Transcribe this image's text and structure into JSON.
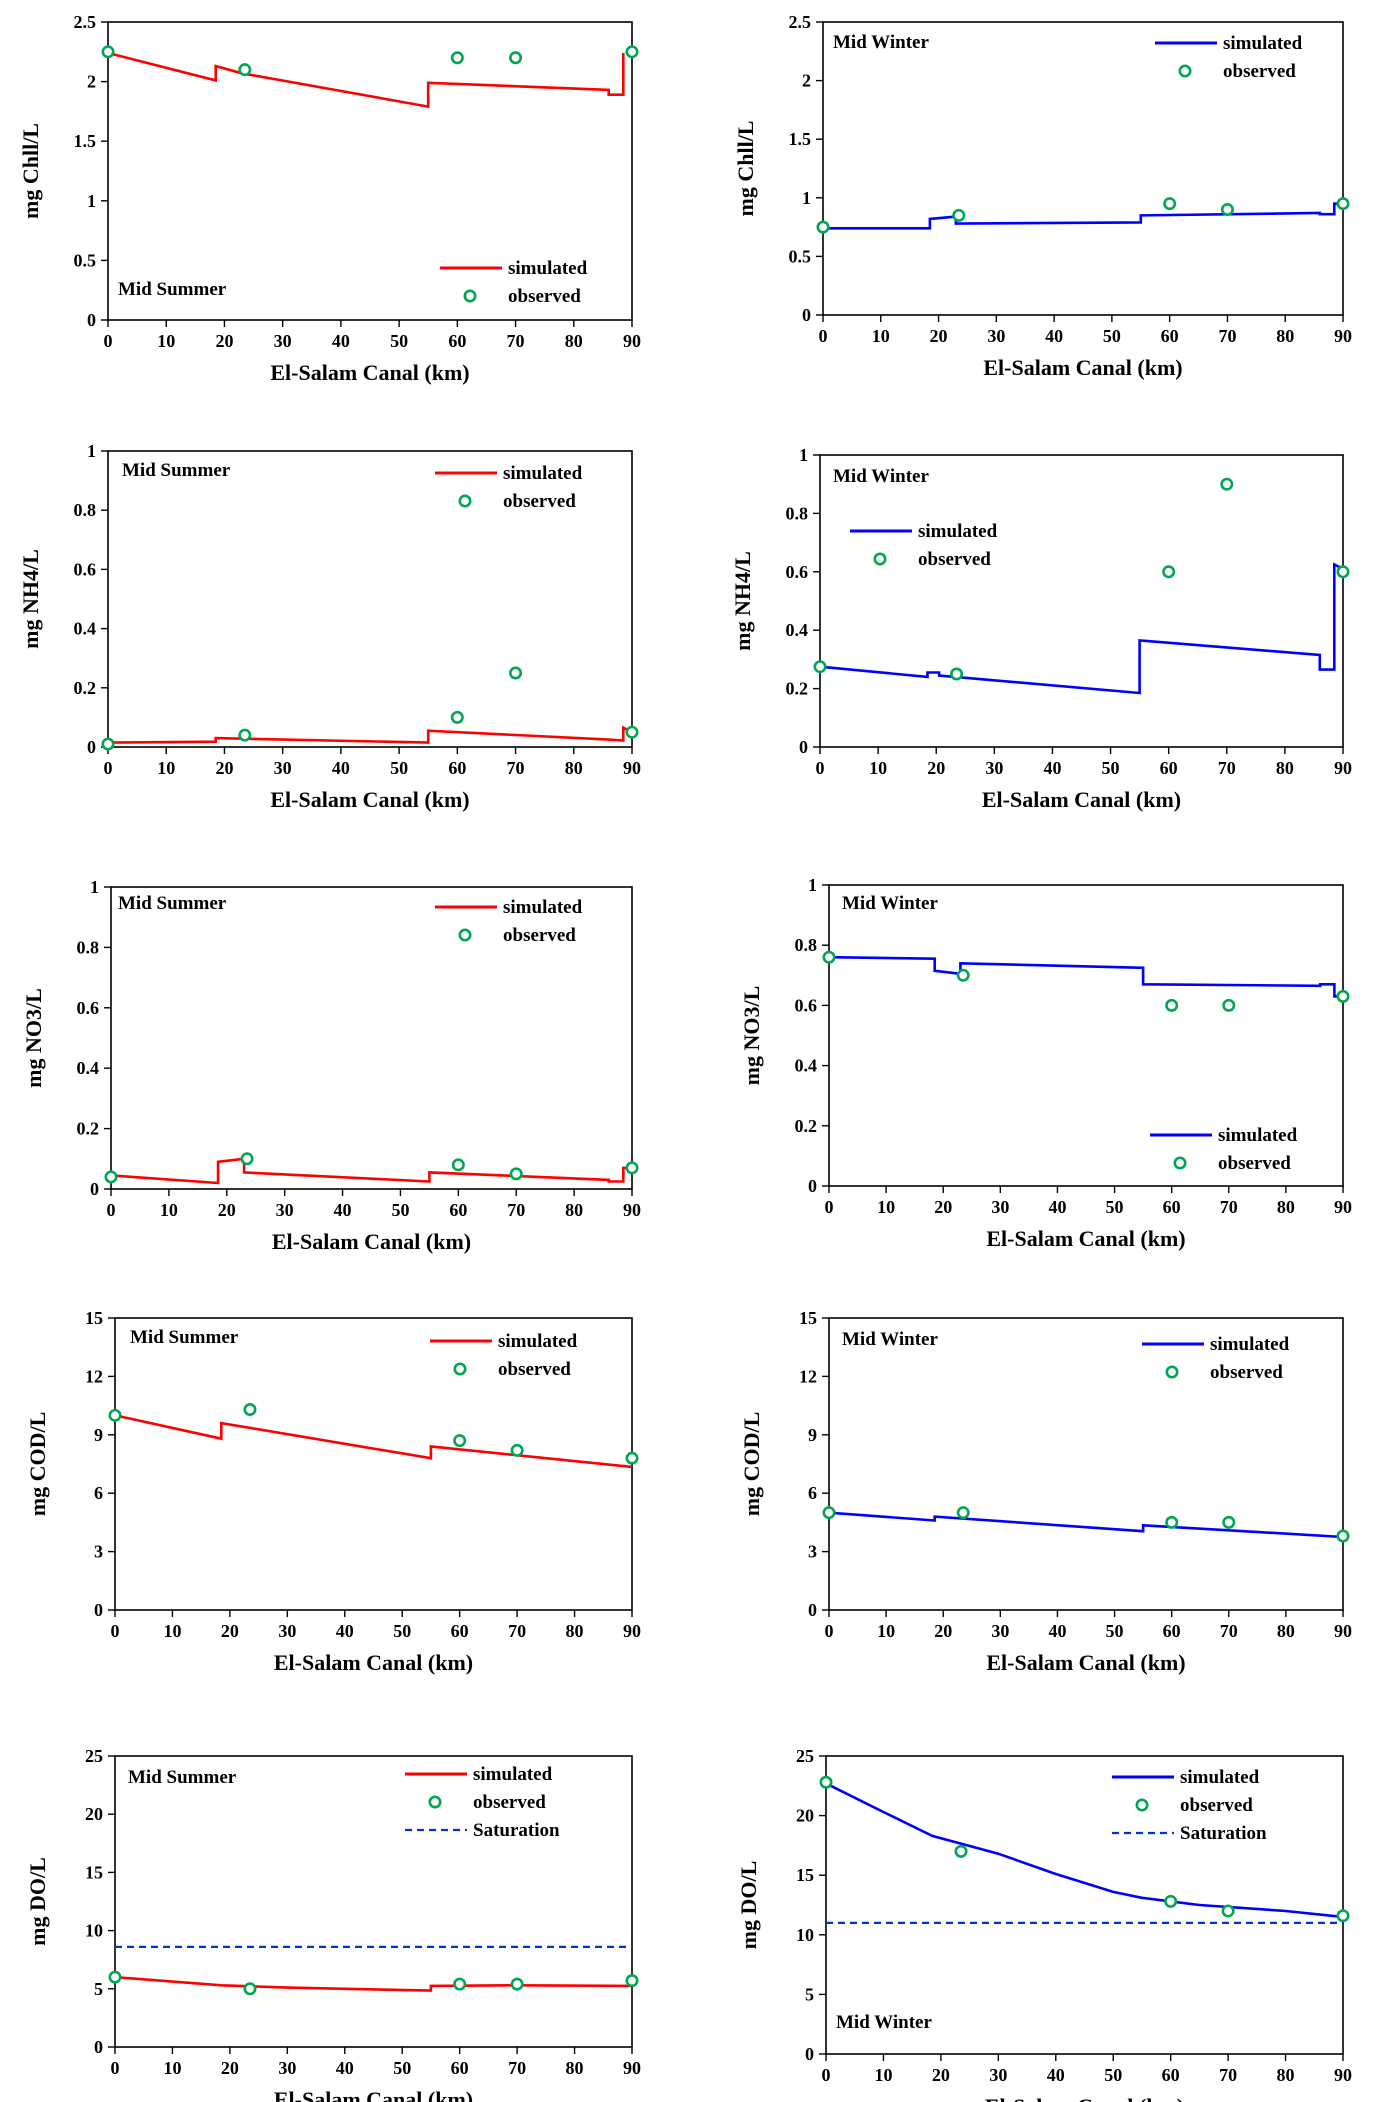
{
  "chart_data": [
    {
      "type": "line",
      "ylabel": "mg Chll/L",
      "xlabel": "El-Salam Canal (km)",
      "annotation": "Mid Summer",
      "xlim": [
        0,
        90
      ],
      "ylim": [
        0,
        2.5
      ],
      "xticks": [
        0,
        10,
        20,
        30,
        40,
        50,
        60,
        70,
        80,
        90
      ],
      "yticks": [
        0,
        0.5,
        1,
        1.5,
        2,
        2.5
      ],
      "legend_position": "bottom-right",
      "series": [
        {
          "name": "simulated",
          "kind": "line",
          "color": "#ff0000",
          "x": [
            0,
            18.5,
            18.5,
            23,
            55,
            55,
            86,
            86,
            88.5,
            88.5
          ],
          "y": [
            2.24,
            2.01,
            2.13,
            2.07,
            1.79,
            1.99,
            1.93,
            1.89,
            1.89,
            2.24
          ]
        },
        {
          "name": "observed",
          "kind": "scatter",
          "color": "#00a651",
          "x": [
            0,
            23.5,
            60,
            70,
            90
          ],
          "y": [
            2.25,
            2.1,
            2.2,
            2.2,
            2.25
          ]
        }
      ]
    },
    {
      "type": "line",
      "ylabel": "mg Chll/L",
      "xlabel": "El-Salam Canal (km)",
      "annotation": "Mid Winter",
      "xlim": [
        0,
        90
      ],
      "ylim": [
        0,
        2.5
      ],
      "xticks": [
        0,
        10,
        20,
        30,
        40,
        50,
        60,
        70,
        80,
        90
      ],
      "yticks": [
        0,
        0.5,
        1,
        1.5,
        2,
        2.5
      ],
      "legend_position": "top-right",
      "series": [
        {
          "name": "simulated",
          "kind": "line",
          "color": "#0000ff",
          "x": [
            0,
            18.5,
            18.5,
            23,
            23,
            55,
            55,
            86,
            86,
            88.5,
            88.5,
            90
          ],
          "y": [
            0.74,
            0.74,
            0.82,
            0.84,
            0.78,
            0.79,
            0.85,
            0.87,
            0.86,
            0.86,
            0.95,
            0.95
          ]
        },
        {
          "name": "observed",
          "kind": "scatter",
          "color": "#00a651",
          "x": [
            0,
            23.5,
            60,
            70,
            90
          ],
          "y": [
            0.75,
            0.85,
            0.95,
            0.9,
            0.95
          ]
        }
      ]
    },
    {
      "type": "line",
      "ylabel": "mg NH4/L",
      "xlabel": "El-Salam Canal (km)",
      "annotation": "Mid Summer",
      "xlim": [
        0,
        90
      ],
      "ylim": [
        0,
        1
      ],
      "xticks": [
        0,
        10,
        20,
        30,
        40,
        50,
        60,
        70,
        80,
        90
      ],
      "yticks": [
        0,
        0.2,
        0.4,
        0.6,
        0.8,
        1
      ],
      "legend_position": "top-right",
      "series": [
        {
          "name": "simulated",
          "kind": "line",
          "color": "#ff0000",
          "x": [
            0,
            18.5,
            18.5,
            55,
            55,
            86,
            88.5,
            88.5,
            90
          ],
          "y": [
            0.015,
            0.018,
            0.03,
            0.015,
            0.055,
            0.025,
            0.022,
            0.065,
            0.05
          ]
        },
        {
          "name": "observed",
          "kind": "scatter",
          "color": "#00a651",
          "x": [
            0,
            23.5,
            60,
            70,
            90
          ],
          "y": [
            0.01,
            0.04,
            0.1,
            0.25,
            0.05
          ]
        }
      ]
    },
    {
      "type": "line",
      "ylabel": "mg NH4/L",
      "xlabel": "El-Salam Canal (km)",
      "annotation": "Mid Winter",
      "xlim": [
        0,
        90
      ],
      "ylim": [
        0,
        1
      ],
      "xticks": [
        0,
        10,
        20,
        30,
        40,
        50,
        60,
        70,
        80,
        90
      ],
      "yticks": [
        0,
        0.2,
        0.4,
        0.6,
        0.8,
        1
      ],
      "legend_position": "top-left",
      "series": [
        {
          "name": "simulated",
          "kind": "line",
          "color": "#0000ff",
          "x": [
            0,
            18.5,
            18.5,
            20.5,
            20.5,
            55,
            55,
            86,
            86,
            88.5,
            88.5,
            90
          ],
          "y": [
            0.275,
            0.24,
            0.255,
            0.255,
            0.245,
            0.185,
            0.365,
            0.315,
            0.265,
            0.265,
            0.625,
            0.61
          ]
        },
        {
          "name": "observed",
          "kind": "scatter",
          "color": "#00a651",
          "x": [
            0,
            23.5,
            60,
            70,
            90
          ],
          "y": [
            0.275,
            0.25,
            0.6,
            0.9,
            0.6
          ]
        }
      ]
    },
    {
      "type": "line",
      "ylabel": "mg NO3/L",
      "xlabel": "El-Salam Canal (km)",
      "annotation": "Mid Summer",
      "xlim": [
        0,
        90
      ],
      "ylim": [
        0,
        1
      ],
      "xticks": [
        0,
        10,
        20,
        30,
        40,
        50,
        60,
        70,
        80,
        90
      ],
      "yticks": [
        0,
        0.2,
        0.4,
        0.6,
        0.8,
        1
      ],
      "legend_position": "top-right",
      "series": [
        {
          "name": "simulated",
          "kind": "line",
          "color": "#ff0000",
          "x": [
            0,
            18.5,
            18.5,
            23,
            23,
            55,
            55,
            86,
            86,
            88.5,
            88.5,
            90
          ],
          "y": [
            0.045,
            0.02,
            0.09,
            0.1,
            0.055,
            0.025,
            0.055,
            0.03,
            0.025,
            0.025,
            0.07,
            0.07
          ]
        },
        {
          "name": "observed",
          "kind": "scatter",
          "color": "#00a651",
          "x": [
            0,
            23.5,
            60,
            70,
            90
          ],
          "y": [
            0.04,
            0.1,
            0.08,
            0.05,
            0.07
          ]
        }
      ]
    },
    {
      "type": "line",
      "ylabel": "mg NO3/L",
      "xlabel": "El-Salam Canal (km)",
      "annotation": "Mid Winter",
      "xlim": [
        0,
        90
      ],
      "ylim": [
        0,
        1
      ],
      "xticks": [
        0,
        10,
        20,
        30,
        40,
        50,
        60,
        70,
        80,
        90
      ],
      "yticks": [
        0,
        0.2,
        0.4,
        0.6,
        0.8,
        1
      ],
      "legend_position": "bottom-right",
      "series": [
        {
          "name": "simulated",
          "kind": "line",
          "color": "#0000ff",
          "x": [
            0,
            18.5,
            18.5,
            23,
            23,
            55,
            55,
            86,
            86,
            88.5,
            88.5,
            90
          ],
          "y": [
            0.76,
            0.755,
            0.715,
            0.705,
            0.74,
            0.725,
            0.67,
            0.665,
            0.67,
            0.67,
            0.63,
            0.63
          ]
        },
        {
          "name": "observed",
          "kind": "scatter",
          "color": "#00a651",
          "x": [
            0,
            23.5,
            60,
            70,
            90
          ],
          "y": [
            0.76,
            0.7,
            0.6,
            0.6,
            0.63
          ]
        }
      ]
    },
    {
      "type": "line",
      "ylabel": "mg COD/L",
      "xlabel": "El-Salam Canal (km)",
      "annotation": "Mid Summer",
      "xlim": [
        0,
        90
      ],
      "ylim": [
        0,
        15
      ],
      "xticks": [
        0,
        10,
        20,
        30,
        40,
        50,
        60,
        70,
        80,
        90
      ],
      "yticks": [
        0,
        3,
        6,
        9,
        12,
        15
      ],
      "legend_position": "top-right",
      "series": [
        {
          "name": "simulated",
          "kind": "line",
          "color": "#ff0000",
          "x": [
            0,
            18.5,
            18.5,
            55,
            55,
            90
          ],
          "y": [
            10,
            8.8,
            9.6,
            7.8,
            8.4,
            7.35
          ]
        },
        {
          "name": "observed",
          "kind": "scatter",
          "color": "#00a651",
          "x": [
            0,
            23.5,
            60,
            70,
            90
          ],
          "y": [
            10,
            10.3,
            8.7,
            8.2,
            7.8
          ]
        }
      ]
    },
    {
      "type": "line",
      "ylabel": "mg COD/L",
      "xlabel": "El-Salam Canal (km)",
      "annotation": "Mid Winter",
      "xlim": [
        0,
        90
      ],
      "ylim": [
        0,
        15
      ],
      "xticks": [
        0,
        10,
        20,
        30,
        40,
        50,
        60,
        70,
        80,
        90
      ],
      "yticks": [
        0,
        3,
        6,
        9,
        12,
        15
      ],
      "legend_position": "top-right",
      "series": [
        {
          "name": "simulated",
          "kind": "line",
          "color": "#0000ff",
          "x": [
            0,
            18.5,
            18.5,
            55,
            55,
            90
          ],
          "y": [
            5,
            4.6,
            4.8,
            4.05,
            4.35,
            3.75
          ]
        },
        {
          "name": "observed",
          "kind": "scatter",
          "color": "#00a651",
          "x": [
            0,
            23.5,
            60,
            70,
            90
          ],
          "y": [
            5,
            5,
            4.5,
            4.5,
            3.8
          ]
        }
      ]
    },
    {
      "type": "line",
      "ylabel": "mg DO/L",
      "xlabel": "El-Salam Canal (km)",
      "annotation": "Mid Summer",
      "xlim": [
        0,
        90
      ],
      "ylim": [
        0,
        25
      ],
      "xticks": [
        0,
        10,
        20,
        30,
        40,
        50,
        60,
        70,
        80,
        90
      ],
      "yticks": [
        0,
        5,
        10,
        15,
        20,
        25
      ],
      "legend_position": "top-right",
      "series": [
        {
          "name": "simulated",
          "kind": "line",
          "color": "#ff0000",
          "x": [
            0,
            18.5,
            30,
            40,
            55,
            55,
            70,
            90
          ],
          "y": [
            6,
            5.3,
            5.1,
            5,
            4.85,
            5.25,
            5.3,
            5.25
          ]
        },
        {
          "name": "observed",
          "kind": "scatter",
          "color": "#00a651",
          "x": [
            0,
            23.5,
            60,
            70,
            90
          ],
          "y": [
            6,
            5,
            5.4,
            5.4,
            5.7
          ]
        },
        {
          "name": "Saturation",
          "kind": "dashed",
          "color": "#0033cc",
          "x": [
            0,
            90
          ],
          "y": [
            8.6,
            8.6
          ]
        }
      ]
    },
    {
      "type": "line",
      "ylabel": "mg DO/L",
      "xlabel": "El-Salam Canal (km)",
      "annotation": "Mid Winter",
      "xlim": [
        0,
        90
      ],
      "ylim": [
        0,
        25
      ],
      "xticks": [
        0,
        10,
        20,
        30,
        40,
        50,
        60,
        70,
        80,
        90
      ],
      "yticks": [
        0,
        5,
        10,
        15,
        20,
        25
      ],
      "legend_position": "top-right",
      "series": [
        {
          "name": "simulated",
          "kind": "line",
          "color": "#0000ff",
          "x": [
            0,
            10,
            18.5,
            30,
            40,
            50,
            55,
            65,
            80,
            90
          ],
          "y": [
            22.7,
            20.3,
            18.3,
            16.8,
            15.1,
            13.6,
            13.1,
            12.5,
            12,
            11.5
          ]
        },
        {
          "name": "observed",
          "kind": "scatter",
          "color": "#00a651",
          "x": [
            0,
            23.5,
            60,
            70,
            90
          ],
          "y": [
            22.8,
            17,
            12.8,
            12,
            11.6
          ]
        },
        {
          "name": "Saturation",
          "kind": "dashed",
          "color": "#0033cc",
          "x": [
            0,
            90
          ],
          "y": [
            11,
            11
          ]
        }
      ]
    }
  ]
}
